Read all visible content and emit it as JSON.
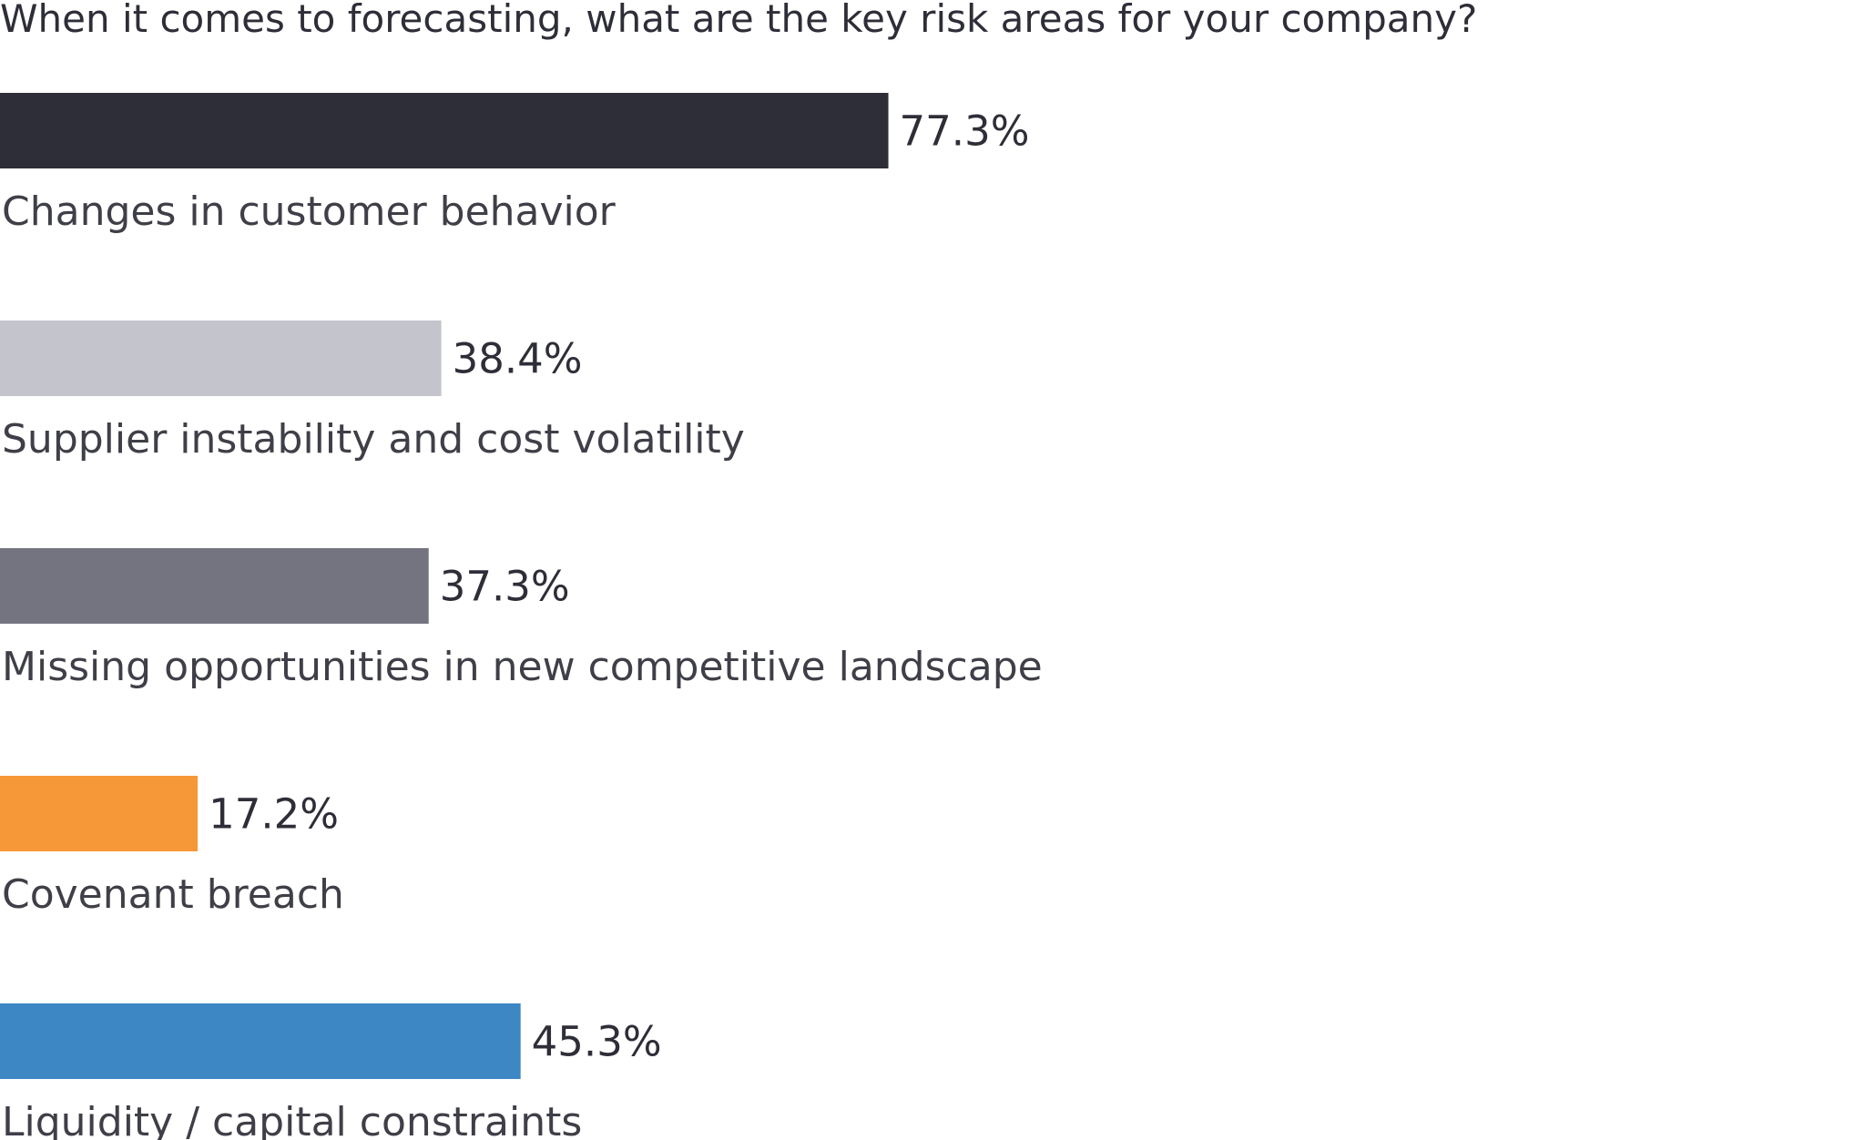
{
  "chart_data": {
    "type": "bar",
    "orientation": "horizontal",
    "title": "When it comes to forecasting, what are the key risk areas for your company?",
    "xlabel": "",
    "ylabel": "",
    "xlim": [
      0,
      100
    ],
    "grid": false,
    "legend": "none",
    "categories": [
      "Changes in customer behavior",
      "Supplier instability and cost volatility",
      "Missing opportunities in new competitive landscape",
      "Covenant breach",
      "Liquidity / capital constraints"
    ],
    "values": [
      77.3,
      38.4,
      37.3,
      17.2,
      45.3
    ],
    "value_labels": [
      "77.3%",
      "38.4%",
      "37.3%",
      "17.2%",
      "45.3%"
    ],
    "colors": [
      "#2e2e38",
      "#c4c4cd",
      "#747480",
      "#f79838",
      "#3d87c5"
    ]
  }
}
